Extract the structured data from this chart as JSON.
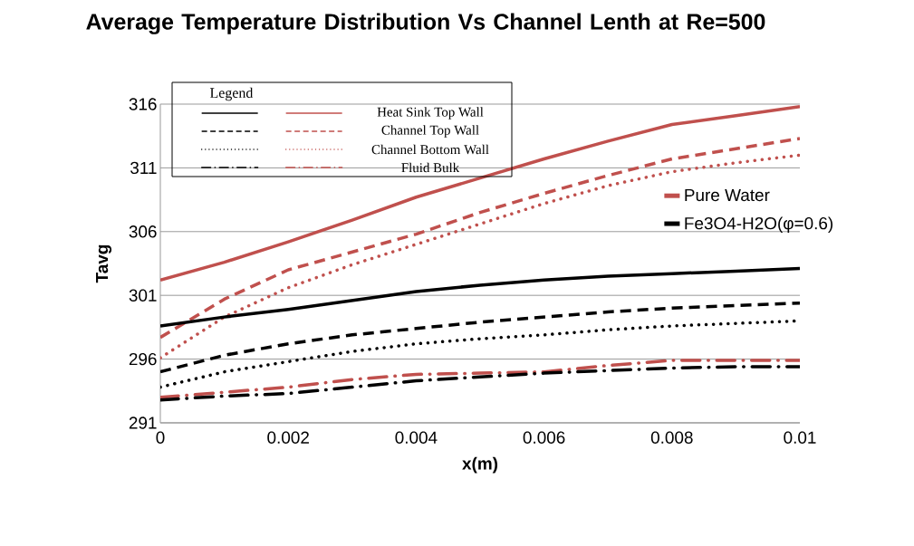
{
  "chart_data": {
    "type": "line",
    "title": "Average Temperature Distribution Vs Channel Lenth at Re=500",
    "xlabel": "x(m)",
    "ylabel": "Tavg",
    "legend_title": "Legend",
    "annotations": [
      "Heat Sink Top Wall",
      "Channel Top Wall",
      "Channel Bottom Wall",
      "Fluid Bulk"
    ],
    "x": [
      0,
      0.001,
      0.002,
      0.003,
      0.004,
      0.005,
      0.006,
      0.007,
      0.008,
      0.009,
      0.01
    ],
    "series": [
      {
        "name": "Pure Water",
        "color": "#c0504d",
        "line_style": "solid",
        "values": [
          302.2,
          303.6,
          305.2,
          306.9,
          308.7,
          310.2,
          311.7,
          313.1,
          314.4,
          315.1,
          315.8
        ]
      },
      {
        "color": "#c0504d",
        "line_style": "dashed",
        "values": [
          297.7,
          300.7,
          303.0,
          304.4,
          305.8,
          307.5,
          309.0,
          310.4,
          311.7,
          312.5,
          313.3
        ]
      },
      {
        "color": "#c0504d",
        "line_style": "dotted",
        "values": [
          296.1,
          299.3,
          301.6,
          303.4,
          305.0,
          306.6,
          308.2,
          309.6,
          310.7,
          311.4,
          312.0
        ]
      },
      {
        "color": "#c0504d",
        "line_style": "dashdot",
        "values": [
          293.0,
          293.4,
          293.8,
          294.4,
          294.8,
          294.9,
          295.0,
          295.5,
          295.9,
          295.9,
          295.9
        ]
      },
      {
        "name": "Fe3O4-H2O(φ=0.6)",
        "color": "#000000",
        "line_style": "solid",
        "values": [
          298.6,
          299.3,
          299.9,
          300.6,
          301.3,
          301.8,
          302.2,
          302.5,
          302.7,
          302.9,
          303.1
        ]
      },
      {
        "color": "#000000",
        "line_style": "dashed",
        "values": [
          295.0,
          296.3,
          297.2,
          297.9,
          298.4,
          298.9,
          299.3,
          299.7,
          300.0,
          300.2,
          300.4
        ]
      },
      {
        "color": "#000000",
        "line_style": "dotted",
        "values": [
          293.8,
          295.0,
          295.8,
          296.6,
          297.2,
          297.6,
          297.9,
          298.3,
          298.6,
          298.8,
          299.0
        ]
      },
      {
        "color": "#000000",
        "line_style": "dashdot",
        "values": [
          292.8,
          293.1,
          293.3,
          293.8,
          294.3,
          294.6,
          294.9,
          295.1,
          295.3,
          295.4,
          295.4
        ]
      }
    ],
    "xlim": [
      0,
      0.01
    ],
    "xticks": [
      0,
      0.002,
      0.004,
      0.006,
      0.008,
      0.01
    ],
    "ylim": [
      291,
      316
    ],
    "yticks": [
      291,
      296,
      301,
      306,
      311,
      316
    ],
    "grid": "y",
    "legend": "right",
    "marker": "none"
  }
}
